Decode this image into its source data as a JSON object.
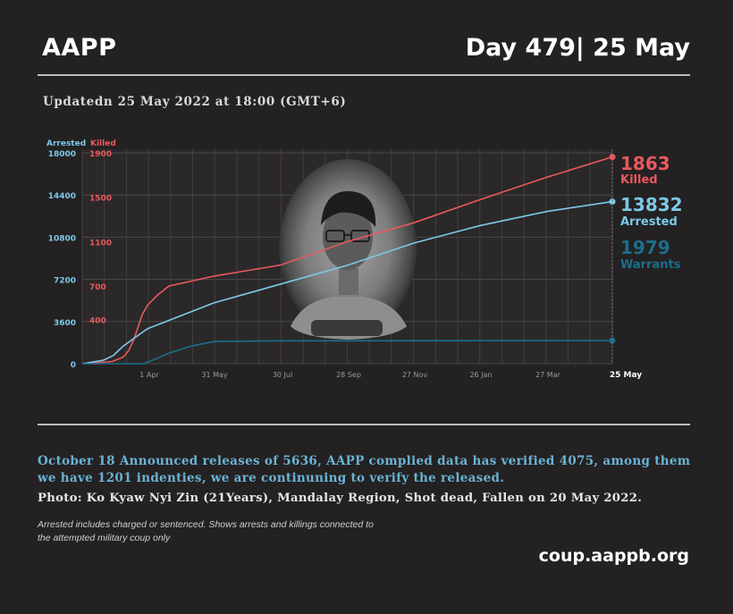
{
  "header": {
    "org": "AAPP",
    "day": "Day 479| 25 May"
  },
  "updated": "Updatedn 25 May 2022 at 18:00 (GMT+6)",
  "chart_data": {
    "type": "line",
    "axis_labels": {
      "left": "Arrested",
      "right": "Killed"
    },
    "arrested_ticks": [
      "18000",
      "14400",
      "10800",
      "7200",
      "3600",
      "0"
    ],
    "killed_ticks": [
      "1900",
      "1500",
      "1100",
      "700",
      "400"
    ],
    "x_ticks": [
      "1 Apr",
      "31 May",
      "30 Jul",
      "28 Sep",
      "27 Nov",
      "26 Jan",
      "27 Mar",
      "25 May"
    ],
    "ylim_arrested": [
      0,
      18000
    ],
    "ylim_killed": [
      0,
      1900
    ],
    "x_range": [
      "2021-02-01",
      "2022-05-25"
    ],
    "colors": {
      "killed": "#e8595e",
      "arrested": "#7cc9e6",
      "warrants": "#1a6f8a"
    },
    "series": [
      {
        "name": "Killed",
        "axis": "killed",
        "label_value": "1863",
        "label_text": "Killed",
        "points": [
          [
            "2021-02-01",
            0
          ],
          [
            "2021-02-28",
            20
          ],
          [
            "2021-03-10",
            60
          ],
          [
            "2021-03-15",
            120
          ],
          [
            "2021-03-20",
            230
          ],
          [
            "2021-03-27",
            440
          ],
          [
            "2021-04-01",
            530
          ],
          [
            "2021-04-10",
            620
          ],
          [
            "2021-04-20",
            700
          ],
          [
            "2021-05-31",
            790
          ],
          [
            "2021-07-30",
            890
          ],
          [
            "2021-09-28",
            1100
          ],
          [
            "2021-11-27",
            1270
          ],
          [
            "2022-01-26",
            1480
          ],
          [
            "2022-03-27",
            1680
          ],
          [
            "2022-05-25",
            1863
          ]
        ]
      },
      {
        "name": "Arrested",
        "axis": "arrested",
        "label_value": "13832",
        "label_text": "Arrested",
        "points": [
          [
            "2021-02-01",
            0
          ],
          [
            "2021-02-20",
            300
          ],
          [
            "2021-03-01",
            700
          ],
          [
            "2021-03-10",
            1500
          ],
          [
            "2021-03-20",
            2200
          ],
          [
            "2021-04-01",
            3000
          ],
          [
            "2021-05-31",
            5200
          ],
          [
            "2021-07-30",
            6800
          ],
          [
            "2021-09-28",
            8400
          ],
          [
            "2021-11-27",
            10300
          ],
          [
            "2022-01-26",
            11800
          ],
          [
            "2022-03-27",
            13000
          ],
          [
            "2022-05-25",
            13832
          ]
        ]
      },
      {
        "name": "Warrants",
        "axis": "arrested",
        "label_value": "1979",
        "label_text": "Warrants",
        "points": [
          [
            "2021-02-01",
            0
          ],
          [
            "2021-03-28",
            0
          ],
          [
            "2021-04-08",
            400
          ],
          [
            "2021-04-20",
            900
          ],
          [
            "2021-05-10",
            1500
          ],
          [
            "2021-05-31",
            1900
          ],
          [
            "2021-07-30",
            1960
          ],
          [
            "2022-05-25",
            1979
          ]
        ]
      }
    ]
  },
  "notice": "October 18 Announced releases of 5636, AAPP complied data has verified 4075, among them we have 1201 indenties, we are continuning to verify the released.",
  "photo_caption": "Photo: Ko Kyaw Nyi Zin (21Years), Mandalay Region, Shot dead, Fallen on  20 May 2022.",
  "footnote": "Arrested includes charged or sentenced. Shows arrests and killings connected to the attempted military coup only",
  "url": "coup.aappb.org"
}
